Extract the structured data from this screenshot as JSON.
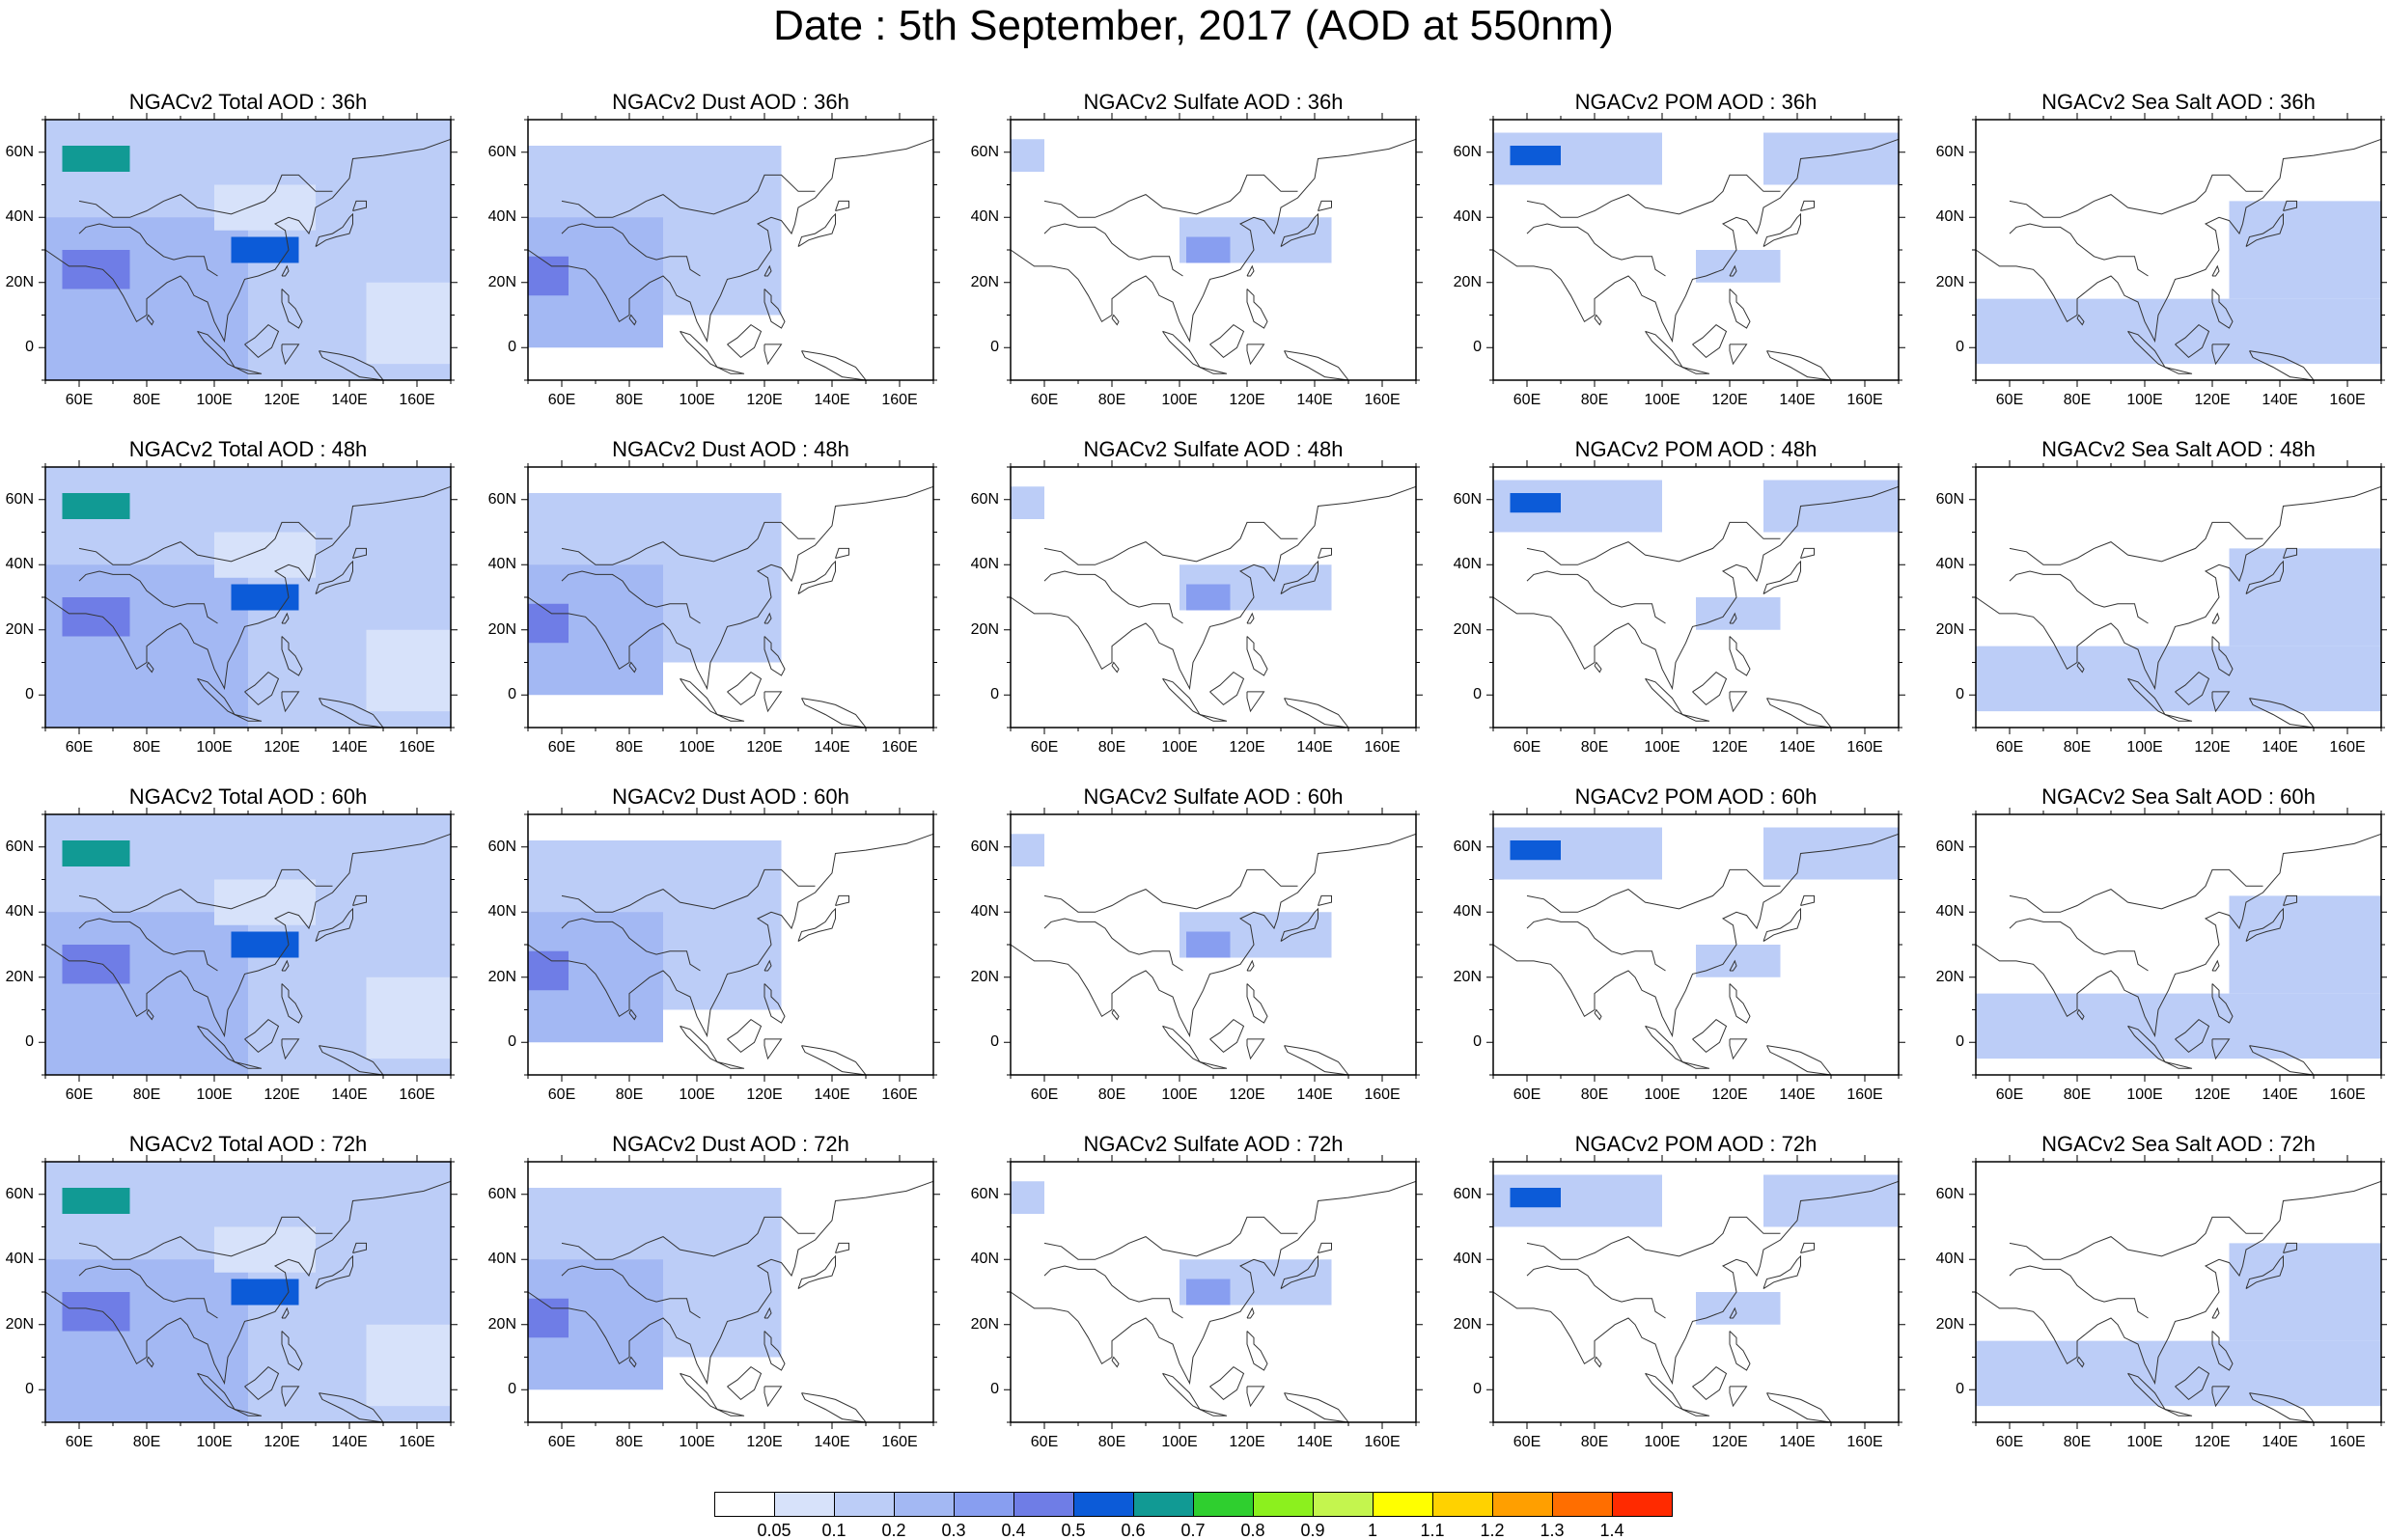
{
  "figure": {
    "title": "Date : 5th September, 2017 (AOD at 550nm)"
  },
  "panels": [
    {
      "title": "NGACv2 Total AOD : 36h",
      "product": "total",
      "forecast_hour": "36h"
    },
    {
      "title": "NGACv2 Dust AOD : 36h",
      "product": "dust",
      "forecast_hour": "36h"
    },
    {
      "title": "NGACv2 Sulfate AOD : 36h",
      "product": "sulfate",
      "forecast_hour": "36h"
    },
    {
      "title": "NGACv2 POM AOD : 36h",
      "product": "pom",
      "forecast_hour": "36h"
    },
    {
      "title": "NGACv2 Sea Salt AOD : 36h",
      "product": "seasalt",
      "forecast_hour": "36h"
    },
    {
      "title": "NGACv2 Total AOD : 48h",
      "product": "total",
      "forecast_hour": "48h"
    },
    {
      "title": "NGACv2 Dust AOD : 48h",
      "product": "dust",
      "forecast_hour": "48h"
    },
    {
      "title": "NGACv2 Sulfate AOD : 48h",
      "product": "sulfate",
      "forecast_hour": "48h"
    },
    {
      "title": "NGACv2 POM AOD : 48h",
      "product": "pom",
      "forecast_hour": "48h"
    },
    {
      "title": "NGACv2 Sea Salt AOD : 48h",
      "product": "seasalt",
      "forecast_hour": "48h"
    },
    {
      "title": "NGACv2 Total AOD : 60h",
      "product": "total",
      "forecast_hour": "60h"
    },
    {
      "title": "NGACv2 Dust AOD : 60h",
      "product": "dust",
      "forecast_hour": "60h"
    },
    {
      "title": "NGACv2 Sulfate AOD : 60h",
      "product": "sulfate",
      "forecast_hour": "60h"
    },
    {
      "title": "NGACv2 POM AOD : 60h",
      "product": "pom",
      "forecast_hour": "60h"
    },
    {
      "title": "NGACv2 Sea Salt AOD : 60h",
      "product": "seasalt",
      "forecast_hour": "60h"
    },
    {
      "title": "NGACv2 Total AOD : 72h",
      "product": "total",
      "forecast_hour": "72h"
    },
    {
      "title": "NGACv2 Dust AOD : 72h",
      "product": "dust",
      "forecast_hour": "72h"
    },
    {
      "title": "NGACv2 Sulfate AOD : 72h",
      "product": "sulfate",
      "forecast_hour": "72h"
    },
    {
      "title": "NGACv2 POM AOD : 72h",
      "product": "pom",
      "forecast_hour": "72h"
    },
    {
      "title": "NGACv2 Sea Salt  AOD : 72h",
      "product": "seasalt",
      "forecast_hour": "72h"
    }
  ],
  "map": {
    "lon_range": [
      50,
      170
    ],
    "lat_range": [
      -10,
      70
    ],
    "lon_ticks": [
      "60E",
      "80E",
      "100E",
      "120E",
      "140E",
      "160E"
    ],
    "lon_tick_values": [
      60,
      80,
      100,
      120,
      140,
      160
    ],
    "lat_ticks": [
      "60N",
      "40N",
      "20N",
      "0"
    ],
    "lat_tick_values": [
      60,
      40,
      20,
      0
    ],
    "coastline_color": "#333333"
  },
  "colorbar": {
    "labels": [
      "0.05",
      "0.1",
      "0.2",
      "0.3",
      "0.4",
      "0.5",
      "0.6",
      "0.7",
      "0.8",
      "0.9",
      "1",
      "1.1",
      "1.2",
      "1.3",
      "1.4"
    ],
    "colors": [
      "#ffffff",
      "#d7e2fa",
      "#bccdf7",
      "#a3b8f3",
      "#889ef0",
      "#6f7de6",
      "#0c5bd8",
      "#119a94",
      "#2fcf2f",
      "#8cf01e",
      "#c4f54e",
      "#ffff00",
      "#ffd200",
      "#ff9f00",
      "#ff6e00",
      "#ff2a00"
    ]
  },
  "chart_data": {
    "type": "heatmap",
    "title": "Date : 5th September, 2017 (AOD at 550nm)",
    "variable": "AOD at 550nm",
    "x_range": [
      50,
      170
    ],
    "y_range": [
      -10,
      70
    ],
    "legend": "bottom",
    "levels": [
      0.05,
      0.1,
      0.2,
      0.3,
      0.4,
      0.5,
      0.6,
      0.7,
      0.8,
      0.9,
      1,
      1.1,
      1.2,
      1.3,
      1.4
    ],
    "regions": {
      "total": [
        {
          "lon": [
            50,
            170
          ],
          "lat": [
            -10,
            70
          ],
          "value": 0.15
        },
        {
          "lon": [
            50,
            110
          ],
          "lat": [
            -10,
            40
          ],
          "value": 0.25
        },
        {
          "lon": [
            55,
            75
          ],
          "lat": [
            18,
            30
          ],
          "value": 0.4
        },
        {
          "lon": [
            55,
            75
          ],
          "lat": [
            54,
            62
          ],
          "value": 0.6
        },
        {
          "lon": [
            105,
            125
          ],
          "lat": [
            26,
            34
          ],
          "value": 0.5
        },
        {
          "lon": [
            100,
            130
          ],
          "lat": [
            36,
            50
          ],
          "value": 0.05
        },
        {
          "lon": [
            145,
            170
          ],
          "lat": [
            -5,
            20
          ],
          "value": 0.05
        }
      ],
      "dust": [
        {
          "lon": [
            50,
            125
          ],
          "lat": [
            10,
            62
          ],
          "value": 0.1
        },
        {
          "lon": [
            50,
            90
          ],
          "lat": [
            0,
            40
          ],
          "value": 0.25
        },
        {
          "lon": [
            50,
            62
          ],
          "lat": [
            16,
            28
          ],
          "value": 0.45
        }
      ],
      "sulfate": [
        {
          "lon": [
            50,
            60
          ],
          "lat": [
            54,
            64
          ],
          "value": 0.1
        },
        {
          "lon": [
            100,
            145
          ],
          "lat": [
            26,
            40
          ],
          "value": 0.1
        },
        {
          "lon": [
            102,
            115
          ],
          "lat": [
            26,
            34
          ],
          "value": 0.3
        }
      ],
      "pom": [
        {
          "lon": [
            50,
            100
          ],
          "lat": [
            50,
            66
          ],
          "value": 0.1
        },
        {
          "lon": [
            55,
            70
          ],
          "lat": [
            56,
            62
          ],
          "value": 0.5
        },
        {
          "lon": [
            110,
            135
          ],
          "lat": [
            20,
            30
          ],
          "value": 0.1
        },
        {
          "lon": [
            130,
            170
          ],
          "lat": [
            50,
            66
          ],
          "value": 0.1
        }
      ],
      "seasalt": [
        {
          "lon": [
            50,
            170
          ],
          "lat": [
            -5,
            15
          ],
          "value": 0.1
        },
        {
          "lon": [
            125,
            170
          ],
          "lat": [
            15,
            45
          ],
          "value": 0.1
        }
      ]
    },
    "forecast_hours": [
      "36h",
      "48h",
      "60h",
      "72h"
    ],
    "products": [
      "Total",
      "Dust",
      "Sulfate",
      "POM",
      "Sea Salt"
    ]
  }
}
